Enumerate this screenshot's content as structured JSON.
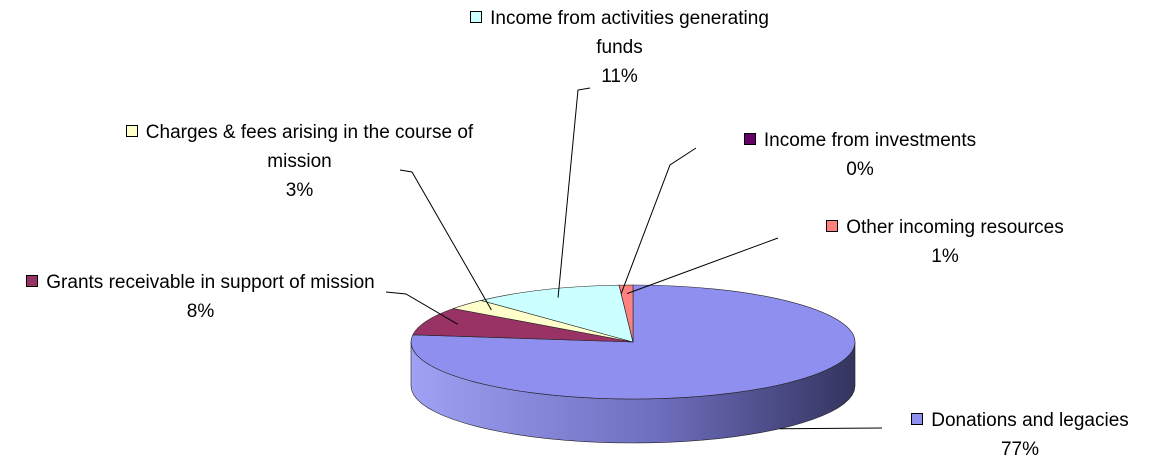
{
  "chart_data": {
    "type": "pie",
    "categories": [
      "Donations and legacies",
      "Grants receivable in support of mission",
      "Charges & fees arising in the course of mission",
      "Income from activities generating funds",
      "Income from investments",
      "Other incoming resources"
    ],
    "values": [
      77,
      8,
      3,
      11,
      0,
      1
    ],
    "value_labels": [
      "77%",
      "8%",
      "3%",
      "11%",
      "0%",
      "1%"
    ],
    "colors": [
      "#8f8fef",
      "#993366",
      "#ffffcc",
      "#ccffff",
      "#660066",
      "#ff8080"
    ]
  }
}
